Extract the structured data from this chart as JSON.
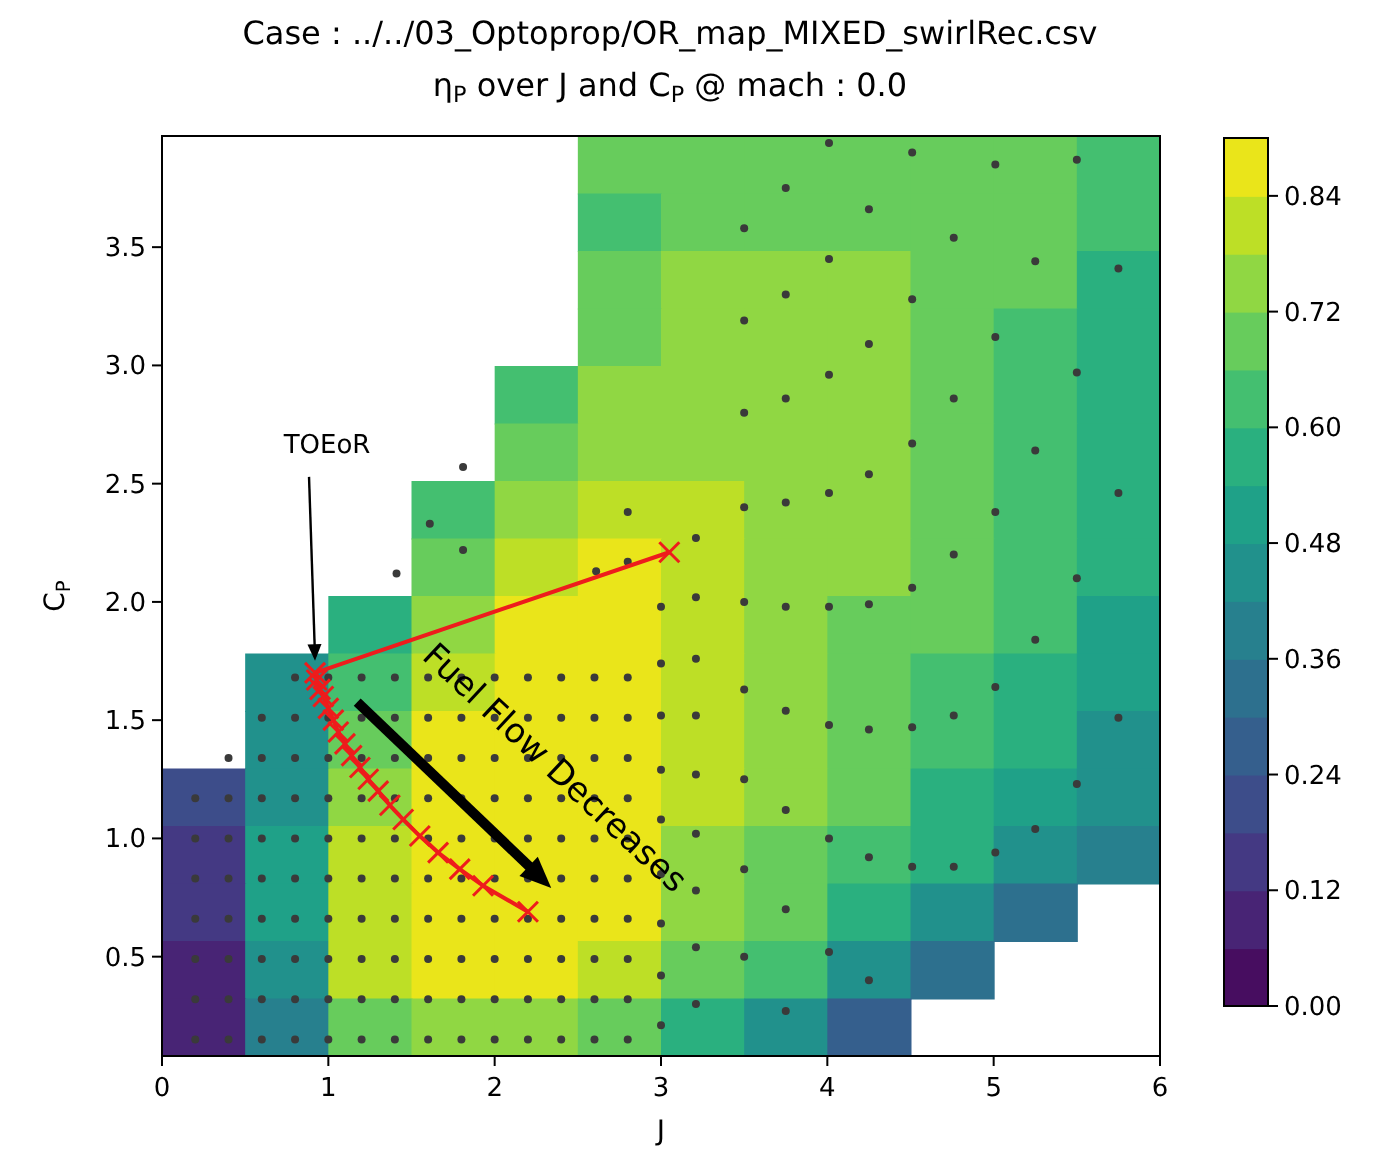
{
  "chart_data": {
    "type": "heatmap",
    "title": "Case : ../../03_Optoprop/OR_map_MIXED_swirlRec.csv",
    "subtitle": "η$_{P}$ over J and C$_{P}$ @ mach : 0.0",
    "xlabel": "J",
    "ylabel": "C$_{P}$",
    "xlim": [
      0,
      6
    ],
    "ylim": [
      0.08,
      3.97
    ],
    "xticks": [
      0,
      1,
      2,
      3,
      4,
      5,
      6
    ],
    "yticks": [
      0.5,
      {
        "value": 1,
        "label": "1.0"
      },
      1.5,
      {
        "value": 2,
        "label": "2.0"
      },
      2.5,
      {
        "value": 3,
        "label": "3.0"
      },
      3.5
    ],
    "clim": [
      0,
      0.9
    ],
    "cticks": [
      {
        "value": 0,
        "label": "0.00"
      },
      {
        "value": 0.12,
        "label": "0.12"
      },
      {
        "value": 0.24,
        "label": "0.24"
      },
      {
        "value": 0.36,
        "label": "0.36"
      },
      {
        "value": 0.48,
        "label": "0.48"
      },
      {
        "value": 0.6,
        "label": "0.60"
      },
      {
        "value": 0.72,
        "label": "0.72"
      },
      {
        "value": 0.84,
        "label": "0.84"
      }
    ],
    "cells": [
      [
        null,
        null,
        null,
        null,
        null,
        0.66,
        0.7,
        0.7,
        0.7,
        0.7,
        0.66,
        0.6
      ],
      [
        null,
        null,
        null,
        null,
        null,
        0.64,
        0.7,
        0.71,
        0.71,
        0.7,
        0.66,
        0.6
      ],
      [
        null,
        null,
        null,
        null,
        null,
        0.66,
        0.72,
        0.73,
        0.72,
        0.7,
        0.66,
        0.58
      ],
      [
        null,
        null,
        null,
        null,
        null,
        0.68,
        0.74,
        0.75,
        0.73,
        0.7,
        0.65,
        0.58
      ],
      [
        null,
        null,
        null,
        null,
        0.62,
        0.72,
        0.76,
        0.76,
        0.74,
        0.7,
        0.64,
        0.57
      ],
      [
        null,
        null,
        null,
        null,
        0.66,
        0.76,
        0.77,
        0.77,
        0.74,
        0.7,
        0.64,
        0.56
      ],
      [
        null,
        null,
        null,
        0.6,
        0.74,
        0.8,
        0.78,
        0.77,
        0.73,
        0.69,
        0.63,
        0.55
      ],
      [
        null,
        null,
        null,
        0.68,
        0.82,
        0.86,
        0.8,
        0.77,
        0.72,
        0.68,
        0.62,
        0.54
      ],
      [
        null,
        null,
        0.56,
        0.76,
        0.86,
        0.87,
        0.79,
        0.76,
        0.71,
        0.66,
        0.6,
        0.52
      ],
      [
        null,
        0.44,
        0.64,
        0.82,
        0.87,
        0.87,
        0.79,
        0.75,
        0.7,
        0.64,
        0.57,
        0.5
      ],
      [
        null,
        0.42,
        0.68,
        0.84,
        0.87,
        0.87,
        0.79,
        0.74,
        0.68,
        0.62,
        0.54,
        0.46
      ],
      [
        0.18,
        0.46,
        0.74,
        0.86,
        0.88,
        0.87,
        0.78,
        0.72,
        0.66,
        0.58,
        0.5,
        0.42
      ],
      [
        0.15,
        0.5,
        0.78,
        0.87,
        0.88,
        0.86,
        0.77,
        0.7,
        0.62,
        0.54,
        0.44,
        0.36
      ],
      [
        0.12,
        0.5,
        0.82,
        0.88,
        0.88,
        0.84,
        0.74,
        0.66,
        0.56,
        0.46,
        0.34,
        null
      ],
      [
        0.1,
        0.46,
        0.8,
        0.86,
        0.86,
        0.8,
        0.7,
        0.6,
        0.46,
        0.3,
        null,
        null
      ],
      [
        0.06,
        0.36,
        0.66,
        0.74,
        0.72,
        0.66,
        0.58,
        0.46,
        0.24,
        null,
        null,
        null
      ]
    ],
    "series": [
      {
        "type": "scatter",
        "color": "#3a3a3a",
        "marker": "circle",
        "x": [
          0.2,
          0.2,
          0.2,
          0.2,
          0.2,
          0.2,
          0.2,
          0.4,
          0.4,
          0.4,
          0.4,
          0.4,
          0.4,
          0.4,
          0.4,
          0.6,
          0.6,
          0.6,
          0.6,
          0.6,
          0.6,
          0.6,
          0.6,
          0.6,
          0.8,
          0.8,
          0.8,
          0.8,
          0.8,
          0.8,
          0.8,
          0.8,
          0.8,
          0.8,
          1.0,
          1.0,
          1.0,
          1.0,
          1.0,
          1.0,
          1.0,
          1.0,
          1.0,
          1.0,
          1.2,
          1.2,
          1.2,
          1.2,
          1.2,
          1.2,
          1.2,
          1.2,
          1.2,
          1.2,
          1.4,
          1.4,
          1.4,
          1.4,
          1.4,
          1.4,
          1.4,
          1.4,
          1.4,
          1.4,
          1.6,
          1.6,
          1.6,
          1.6,
          1.6,
          1.6,
          1.6,
          1.6,
          1.6,
          1.6,
          1.8,
          1.8,
          1.8,
          1.8,
          1.8,
          1.8,
          1.8,
          1.8,
          1.8,
          1.8,
          2.0,
          2.0,
          2.0,
          2.0,
          2.0,
          2.0,
          2.0,
          2.0,
          2.0,
          2.0,
          2.2,
          2.2,
          2.2,
          2.2,
          2.2,
          2.2,
          2.2,
          2.2,
          2.2,
          2.2,
          2.4,
          2.4,
          2.4,
          2.4,
          2.4,
          2.4,
          2.4,
          2.4,
          2.4,
          2.4,
          2.6,
          2.6,
          2.6,
          2.6,
          2.6,
          2.6,
          2.6,
          2.6,
          2.6,
          2.6,
          2.8,
          2.8,
          2.8,
          2.8,
          2.8,
          2.8,
          2.8,
          2.8,
          2.8,
          2.8,
          3.0,
          3.0,
          3.0,
          3.0,
          3.0,
          3.0,
          3.0,
          3.0,
          3.0,
          4.01,
          4.51,
          5.01,
          5.5,
          3.75,
          4.25,
          4.76,
          5.25,
          5.75,
          3.5,
          4.01,
          3.75,
          4.51,
          3.5,
          4.25,
          5.01,
          5.5,
          4.01,
          3.75,
          4.76,
          3.5,
          4.51,
          5.25,
          4.25,
          4.01,
          3.75,
          3.5,
          5.75,
          5.01,
          3.21,
          4.76,
          5.5,
          1.81,
          1.61,
          1.81,
          1.41,
          2.8,
          2.61,
          2.8,
          3.21,
          3.5,
          3.75,
          4.01,
          4.25,
          4.51,
          5.25,
          5.01,
          5.75,
          4.76,
          4.51,
          4.25,
          4.01,
          3.75,
          3.5,
          3.21,
          3.21,
          3.5,
          3.75,
          4.01,
          4.25,
          4.51,
          4.76,
          5.01,
          5.25,
          5.5,
          3.21,
          3.21,
          3.5,
          3.75,
          4.01,
          4.25,
          3.5,
          3.21,
          3.21,
          3.21,
          3.75
        ],
        "values": [
          0.15,
          0.32,
          0.49,
          0.66,
          0.83,
          1.0,
          1.17,
          0.15,
          0.32,
          0.49,
          0.66,
          0.83,
          1.0,
          1.17,
          1.34,
          0.15,
          0.32,
          0.49,
          0.66,
          0.83,
          1.0,
          1.17,
          1.34,
          1.51,
          0.15,
          0.32,
          0.49,
          0.66,
          0.83,
          1.0,
          1.17,
          1.34,
          1.51,
          1.68,
          0.15,
          0.32,
          0.49,
          0.66,
          0.83,
          1.0,
          1.17,
          1.34,
          1.51,
          1.68,
          0.15,
          0.32,
          0.49,
          0.66,
          0.83,
          1.0,
          1.17,
          1.34,
          1.51,
          1.68,
          0.15,
          0.32,
          0.49,
          0.66,
          0.83,
          1.0,
          1.17,
          1.34,
          1.51,
          1.68,
          0.15,
          0.32,
          0.49,
          0.66,
          0.83,
          1.0,
          1.17,
          1.34,
          1.51,
          1.68,
          0.15,
          0.32,
          0.49,
          0.66,
          0.83,
          1.0,
          1.17,
          1.34,
          1.51,
          1.68,
          0.15,
          0.32,
          0.49,
          0.66,
          0.83,
          1.0,
          1.17,
          1.34,
          1.51,
          1.68,
          0.15,
          0.32,
          0.49,
          0.66,
          0.83,
          1.0,
          1.17,
          1.34,
          1.51,
          1.68,
          0.15,
          0.32,
          0.49,
          0.66,
          0.83,
          1.0,
          1.17,
          1.34,
          1.51,
          1.68,
          0.15,
          0.32,
          0.49,
          0.66,
          0.83,
          1.0,
          1.17,
          1.34,
          1.51,
          1.68,
          0.15,
          0.32,
          0.49,
          0.66,
          0.83,
          1.0,
          1.17,
          1.34,
          1.51,
          1.68,
          0.21,
          0.42,
          0.64,
          0.85,
          1.08,
          1.29,
          1.52,
          1.74,
          1.98,
          3.94,
          3.9,
          3.85,
          3.87,
          3.75,
          3.66,
          3.54,
          3.44,
          3.41,
          3.58,
          3.45,
          3.3,
          3.28,
          3.19,
          3.09,
          3.12,
          2.97,
          2.96,
          2.86,
          2.86,
          2.8,
          2.67,
          2.64,
          2.54,
          2.46,
          2.42,
          2.4,
          2.46,
          2.38,
          2.27,
          2.2,
          2.1,
          2.57,
          2.33,
          2.22,
          2.12,
          2.38,
          2.13,
          2.17,
          2.02,
          2.0,
          1.98,
          1.98,
          1.99,
          2.06,
          1.84,
          1.64,
          1.51,
          1.52,
          1.47,
          1.46,
          1.48,
          1.54,
          1.63,
          1.76,
          1.52,
          1.25,
          1.12,
          1.0,
          0.92,
          0.88,
          0.88,
          0.94,
          1.04,
          1.23,
          1.27,
          1.02,
          0.87,
          0.7,
          0.52,
          0.4,
          0.5,
          0.78,
          0.54,
          0.3,
          0.27
        ]
      },
      {
        "type": "line",
        "color": "#ee1c1c",
        "marker": "cross",
        "x": [
          3.05,
          0.92,
          0.93,
          0.95,
          0.97,
          1.0,
          1.03,
          1.06,
          1.1,
          1.14,
          1.19,
          1.24,
          1.3,
          1.37,
          1.45,
          1.55,
          1.66,
          1.79,
          1.93,
          2.2
        ],
        "values": [
          2.21,
          1.7,
          1.67,
          1.63,
          1.6,
          1.55,
          1.5,
          1.45,
          1.4,
          1.35,
          1.3,
          1.25,
          1.2,
          1.14,
          1.08,
          1.01,
          0.94,
          0.87,
          0.8,
          0.69
        ]
      }
    ],
    "annotations": [
      {
        "text": "TOEoR",
        "x": 0.92,
        "y": 1.7
      },
      {
        "text": "Fuel Flow Decreases",
        "x": 2.34,
        "y": 0.79
      }
    ]
  }
}
